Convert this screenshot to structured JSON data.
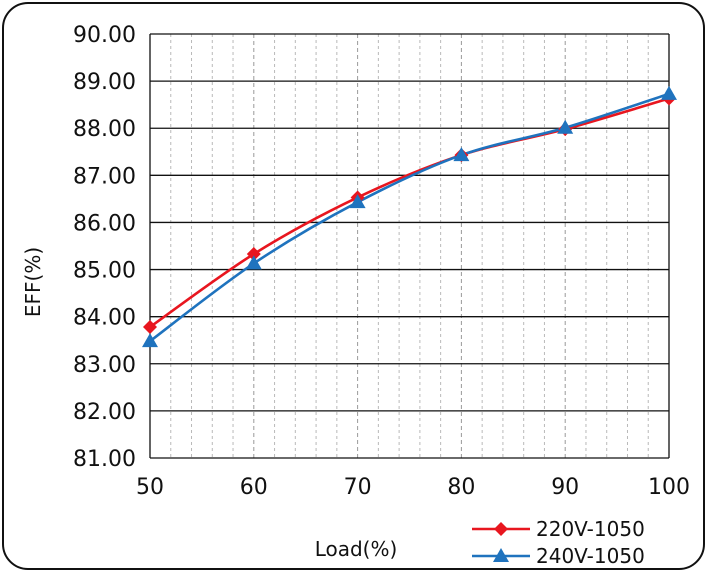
{
  "chart_data": {
    "type": "line",
    "xlabel": "Load(%)",
    "ylabel": "EFF(%)",
    "x": [
      50,
      60,
      70,
      80,
      90,
      100
    ],
    "xlim": [
      50,
      100
    ],
    "ylim": [
      81,
      90
    ],
    "x_ticks": [
      "50",
      "60",
      "70",
      "80",
      "90",
      "100"
    ],
    "y_ticks": [
      "81.00",
      "82.00",
      "83.00",
      "84.00",
      "85.00",
      "86.00",
      "87.00",
      "88.00",
      "89.00",
      "90.00"
    ],
    "grid": "on",
    "legend_position": "bottom-right",
    "series": [
      {
        "name": "220V-1050",
        "values": [
          83.78,
          85.33,
          86.53,
          87.43,
          87.98,
          88.63
        ],
        "color": "#e8161f",
        "marker": "diamond"
      },
      {
        "name": "240V-1050",
        "values": [
          83.48,
          85.13,
          86.43,
          87.43,
          88.01,
          88.73
        ],
        "color": "#1f73be",
        "marker": "triangle"
      }
    ]
  }
}
